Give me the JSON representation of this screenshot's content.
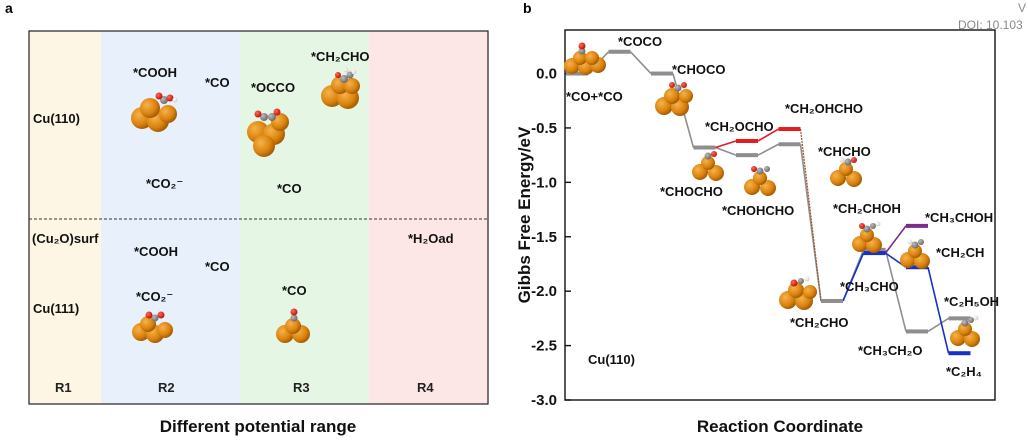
{
  "panel_a": {
    "label": "a",
    "xlabel": "Different potential range",
    "zones": [
      "R1",
      "R2",
      "R3",
      "R4"
    ],
    "zone_colors": [
      "#fdf6e5",
      "#e8f1fb",
      "#e6f6e4",
      "#fde6e6"
    ],
    "rows": [
      "Cu(110)",
      "Cu(111)"
    ],
    "top_row_labels": {
      "r2_cooh": "*COOH",
      "r2_co": "*CO",
      "r3_occo": "*OCCO",
      "r3_ch2cho": "*CH₂CHO",
      "r2_co2": "*CO₂⁻",
      "r3_co": "*CO"
    },
    "bottom_row_labels": {
      "cu2o": "(Cu₂O)surf",
      "r2_cooh": "*COOH",
      "r2_co": "*CO",
      "r4_h2o": "*H₂Oad",
      "r2_co2": "*CO₂⁻",
      "r3_co": "*CO"
    }
  },
  "chart_data": {
    "type": "free-energy-diagram",
    "panel_label": "b",
    "title": "",
    "xlabel": "Reaction Coordinate",
    "ylabel": "Gibbs Free Energy/eV",
    "ylim": [
      -3.0,
      0.4
    ],
    "yticks": [
      "0.0",
      "-0.5",
      "-1.0",
      "-1.5",
      "-2.0",
      "-2.5",
      "-3.0"
    ],
    "ytick_values": [
      0.0,
      -0.5,
      -1.0,
      -1.5,
      -2.0,
      -2.5,
      -3.0
    ],
    "annotation": "Cu(110)",
    "colors": {
      "main": "#8e8e8e",
      "red": "#e31b23",
      "blue": "#1730c8",
      "purple": "#7b2c8f",
      "brown": "#a0522d"
    },
    "steps": [
      {
        "x": 0,
        "y": 0.0,
        "label": "*CO+*CO",
        "series": "main"
      },
      {
        "x": 1,
        "y": 0.2,
        "label": "*COCO",
        "series": "main"
      },
      {
        "x": 2,
        "y": 0.0,
        "label": "*CHOCO",
        "series": "main"
      },
      {
        "x": 3,
        "y": -0.68,
        "label": "*CHOCHO",
        "series": "main"
      },
      {
        "x": 4,
        "y": -0.62,
        "label": "*CH₂OCHO",
        "series": "red"
      },
      {
        "x": 4,
        "y": -0.75,
        "label": "*CHOHCHO",
        "series": "main"
      },
      {
        "x": 5,
        "y": -0.51,
        "label": "*CH₂OHCHO",
        "series": "red"
      },
      {
        "x": 5,
        "y": -0.65,
        "label": "*CHCHO",
        "series": "main"
      },
      {
        "x": 6,
        "y": -2.09,
        "label": "*CH₂CHO",
        "series": "main"
      },
      {
        "x": 7,
        "y": -1.62,
        "label": "*CH₃CHO",
        "series": "main"
      },
      {
        "x": 7,
        "y": -1.65,
        "label": "*CH₂CHOH",
        "series": "blue"
      },
      {
        "x": 8,
        "y": -1.4,
        "label": "*CH₃CHOH",
        "series": "purple"
      },
      {
        "x": 8,
        "y": -1.78,
        "label": "*CH₂CH",
        "series": "blue"
      },
      {
        "x": 8,
        "y": -2.37,
        "label": "*CH₃CH₂O",
        "series": "main"
      },
      {
        "x": 9,
        "y": -2.25,
        "label": "*C₂H₅OH",
        "series": "main"
      },
      {
        "x": 9,
        "y": -2.57,
        "label": "*C₂H₄",
        "series": "blue"
      }
    ]
  },
  "watermark": {
    "v": "V",
    "doi": "DOI: 10.103"
  }
}
